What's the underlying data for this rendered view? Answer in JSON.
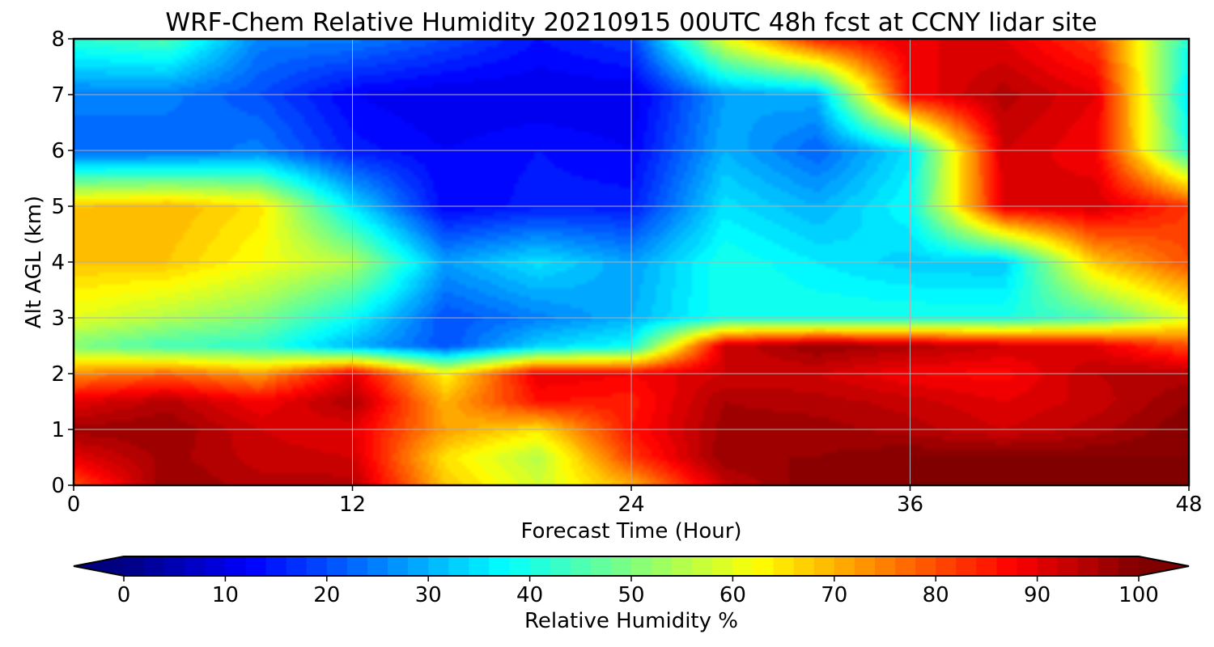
{
  "chart_data": {
    "type": "heatmap",
    "title": "WRF-Chem Relative Humidity 20210915 00UTC 48h fcst at CCNY lidar site",
    "xlabel": "Forecast Time (Hour)",
    "ylabel": "Alt AGL (km)",
    "xlim": [
      0,
      48
    ],
    "ylim": [
      0,
      8
    ],
    "xticks": [
      0,
      12,
      24,
      36,
      48
    ],
    "yticks": [
      0,
      1,
      2,
      3,
      4,
      5,
      6,
      7,
      8
    ],
    "grid": true,
    "colormap": "jet",
    "colorbar": {
      "label": "Relative Humidity %",
      "range": [
        0,
        100
      ],
      "ticks": [
        0,
        10,
        20,
        30,
        40,
        50,
        60,
        70,
        80,
        90,
        100
      ],
      "extend": "both",
      "orientation": "horizontal"
    },
    "x": [
      0,
      4,
      8,
      12,
      16,
      20,
      24,
      28,
      32,
      36,
      40,
      44,
      48
    ],
    "y": [
      0,
      0.5,
      1,
      1.5,
      2,
      2.5,
      3,
      4,
      5,
      6,
      7,
      8
    ],
    "z": [
      [
        80,
        98,
        95,
        95,
        68,
        58,
        70,
        93,
        100,
        100,
        100,
        100,
        100
      ],
      [
        90,
        97,
        93,
        92,
        65,
        55,
        82,
        98,
        98,
        100,
        100,
        100,
        100
      ],
      [
        97,
        98,
        92,
        90,
        72,
        65,
        86,
        97,
        97,
        95,
        92,
        95,
        100
      ],
      [
        90,
        95,
        88,
        96,
        70,
        86,
        85,
        96,
        95,
        93,
        90,
        93,
        98
      ],
      [
        74,
        78,
        72,
        90,
        63,
        90,
        88,
        92,
        92,
        88,
        87,
        94,
        95
      ],
      [
        50,
        44,
        42,
        30,
        20,
        33,
        38,
        92,
        98,
        95,
        92,
        90,
        80
      ],
      [
        60,
        55,
        50,
        38,
        20,
        25,
        30,
        40,
        40,
        40,
        40,
        45,
        60
      ],
      [
        68,
        68,
        62,
        55,
        28,
        35,
        28,
        40,
        36,
        33,
        32,
        68,
        80
      ],
      [
        68,
        70,
        65,
        35,
        12,
        15,
        15,
        35,
        30,
        38,
        90,
        92,
        82
      ],
      [
        22,
        22,
        25,
        15,
        12,
        14,
        12,
        30,
        22,
        35,
        92,
        88,
        40
      ],
      [
        25,
        25,
        20,
        12,
        10,
        10,
        10,
        28,
        30,
        88,
        95,
        90,
        35
      ],
      [
        42,
        45,
        25,
        25,
        20,
        14,
        18,
        60,
        85,
        90,
        90,
        82,
        40
      ]
    ]
  }
}
